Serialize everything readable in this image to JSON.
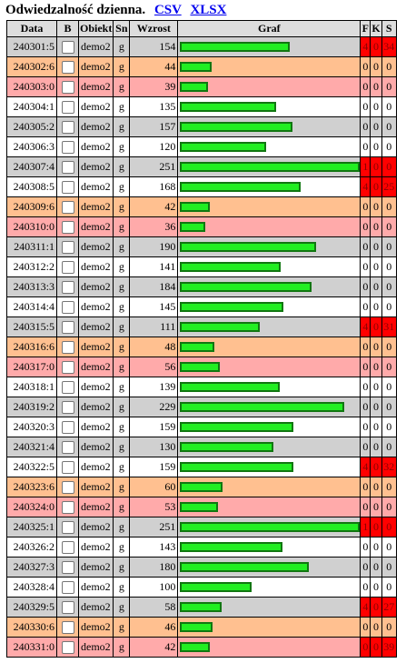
{
  "title": "Odwiedzalność dzienna.",
  "links": [
    "CSV",
    "XLSX"
  ],
  "headers": [
    "Data",
    "B",
    "Obiekt",
    "Sn",
    "Wzrost",
    "Graf",
    "F",
    "K",
    "S"
  ],
  "colors": {
    "bar_fill": "#22ee22",
    "bar_border": "#117711",
    "alarm": "#ff0000"
  },
  "graf_max": 251,
  "rows": [
    {
      "date": "240301:5",
      "obj": "demo2",
      "sn": "g",
      "w": 154,
      "f": 4,
      "k": 0,
      "s": 34,
      "alarm": true,
      "bg": 3
    },
    {
      "date": "240302:6",
      "obj": "demo2",
      "sn": "g",
      "w": 44,
      "f": 0,
      "k": 0,
      "s": 0,
      "alarm": false,
      "bg": 0
    },
    {
      "date": "240303:0",
      "obj": "demo2",
      "sn": "g",
      "w": 39,
      "f": 0,
      "k": 0,
      "s": 0,
      "alarm": false,
      "bg": 1
    },
    {
      "date": "240304:1",
      "obj": "demo2",
      "sn": "g",
      "w": 135,
      "f": 0,
      "k": 0,
      "s": 0,
      "alarm": false,
      "bg": 2
    },
    {
      "date": "240305:2",
      "obj": "demo2",
      "sn": "g",
      "w": 157,
      "f": 0,
      "k": 0,
      "s": 0,
      "alarm": false,
      "bg": 3
    },
    {
      "date": "240306:3",
      "obj": "demo2",
      "sn": "g",
      "w": 120,
      "f": 0,
      "k": 0,
      "s": 0,
      "alarm": false,
      "bg": 2
    },
    {
      "date": "240307:4",
      "obj": "demo2",
      "sn": "g",
      "w": 251,
      "f": 1,
      "k": 0,
      "s": 0,
      "alarm": true,
      "bg": 3
    },
    {
      "date": "240308:5",
      "obj": "demo2",
      "sn": "g",
      "w": 168,
      "f": 4,
      "k": 0,
      "s": 25,
      "alarm": true,
      "bg": 2
    },
    {
      "date": "240309:6",
      "obj": "demo2",
      "sn": "g",
      "w": 42,
      "f": 0,
      "k": 0,
      "s": 0,
      "alarm": false,
      "bg": 0
    },
    {
      "date": "240310:0",
      "obj": "demo2",
      "sn": "g",
      "w": 36,
      "f": 0,
      "k": 0,
      "s": 0,
      "alarm": false,
      "bg": 1
    },
    {
      "date": "240311:1",
      "obj": "demo2",
      "sn": "g",
      "w": 190,
      "f": 0,
      "k": 0,
      "s": 0,
      "alarm": false,
      "bg": 3
    },
    {
      "date": "240312:2",
      "obj": "demo2",
      "sn": "g",
      "w": 141,
      "f": 0,
      "k": 0,
      "s": 0,
      "alarm": false,
      "bg": 2
    },
    {
      "date": "240313:3",
      "obj": "demo2",
      "sn": "g",
      "w": 184,
      "f": 0,
      "k": 0,
      "s": 0,
      "alarm": false,
      "bg": 3
    },
    {
      "date": "240314:4",
      "obj": "demo2",
      "sn": "g",
      "w": 145,
      "f": 0,
      "k": 0,
      "s": 0,
      "alarm": false,
      "bg": 2
    },
    {
      "date": "240315:5",
      "obj": "demo2",
      "sn": "g",
      "w": 111,
      "f": 4,
      "k": 0,
      "s": 31,
      "alarm": true,
      "bg": 3
    },
    {
      "date": "240316:6",
      "obj": "demo2",
      "sn": "g",
      "w": 48,
      "f": 0,
      "k": 0,
      "s": 0,
      "alarm": false,
      "bg": 0
    },
    {
      "date": "240317:0",
      "obj": "demo2",
      "sn": "g",
      "w": 56,
      "f": 0,
      "k": 0,
      "s": 0,
      "alarm": false,
      "bg": 1
    },
    {
      "date": "240318:1",
      "obj": "demo2",
      "sn": "g",
      "w": 139,
      "f": 0,
      "k": 0,
      "s": 0,
      "alarm": false,
      "bg": 2
    },
    {
      "date": "240319:2",
      "obj": "demo2",
      "sn": "g",
      "w": 229,
      "f": 0,
      "k": 0,
      "s": 0,
      "alarm": false,
      "bg": 3
    },
    {
      "date": "240320:3",
      "obj": "demo2",
      "sn": "g",
      "w": 159,
      "f": 0,
      "k": 0,
      "s": 0,
      "alarm": false,
      "bg": 2
    },
    {
      "date": "240321:4",
      "obj": "demo2",
      "sn": "g",
      "w": 130,
      "f": 0,
      "k": 0,
      "s": 0,
      "alarm": false,
      "bg": 3
    },
    {
      "date": "240322:5",
      "obj": "demo2",
      "sn": "g",
      "w": 159,
      "f": 4,
      "k": 0,
      "s": 32,
      "alarm": true,
      "bg": 2
    },
    {
      "date": "240323:6",
      "obj": "demo2",
      "sn": "g",
      "w": 60,
      "f": 0,
      "k": 0,
      "s": 0,
      "alarm": false,
      "bg": 0
    },
    {
      "date": "240324:0",
      "obj": "demo2",
      "sn": "g",
      "w": 53,
      "f": 0,
      "k": 0,
      "s": 0,
      "alarm": false,
      "bg": 1
    },
    {
      "date": "240325:1",
      "obj": "demo2",
      "sn": "g",
      "w": 251,
      "f": 1,
      "k": 0,
      "s": 0,
      "alarm": true,
      "bg": 3
    },
    {
      "date": "240326:2",
      "obj": "demo2",
      "sn": "g",
      "w": 143,
      "f": 0,
      "k": 0,
      "s": 0,
      "alarm": false,
      "bg": 2
    },
    {
      "date": "240327:3",
      "obj": "demo2",
      "sn": "g",
      "w": 180,
      "f": 0,
      "k": 0,
      "s": 0,
      "alarm": false,
      "bg": 3
    },
    {
      "date": "240328:4",
      "obj": "demo2",
      "sn": "g",
      "w": 100,
      "f": 0,
      "k": 0,
      "s": 0,
      "alarm": false,
      "bg": 2
    },
    {
      "date": "240329:5",
      "obj": "demo2",
      "sn": "g",
      "w": 58,
      "f": 4,
      "k": 0,
      "s": 27,
      "alarm": true,
      "bg": 3
    },
    {
      "date": "240330:6",
      "obj": "demo2",
      "sn": "g",
      "w": 46,
      "f": 0,
      "k": 0,
      "s": 0,
      "alarm": false,
      "bg": 0
    },
    {
      "date": "240331:0",
      "obj": "demo2",
      "sn": "g",
      "w": 42,
      "f": 0,
      "k": 0,
      "s": 39,
      "alarm": true,
      "bg": 1
    }
  ]
}
